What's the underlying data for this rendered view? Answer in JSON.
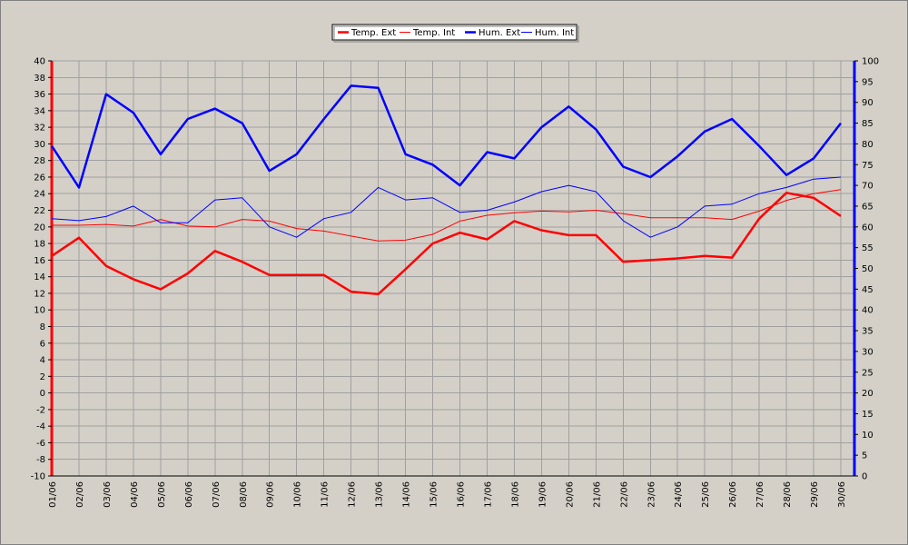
{
  "chart_data": {
    "type": "line",
    "categories": [
      "01/06",
      "02/06",
      "03/06",
      "04/06",
      "05/06",
      "06/06",
      "07/06",
      "08/06",
      "09/06",
      "10/06",
      "11/06",
      "12/06",
      "13/06",
      "14/06",
      "15/06",
      "16/06",
      "17/06",
      "18/06",
      "19/06",
      "20/06",
      "21/06",
      "22/06",
      "23/06",
      "24/06",
      "25/06",
      "26/06",
      "27/06",
      "28/06",
      "29/06",
      "30/06"
    ],
    "x_positions": [
      1,
      2,
      3,
      4,
      5,
      6,
      7,
      8,
      9,
      10,
      11,
      12,
      13,
      14,
      15,
      16,
      17,
      18,
      19,
      20,
      21,
      22,
      23,
      24,
      25,
      26,
      27,
      28,
      29,
      30
    ],
    "x_start_value": 1,
    "x_end_value": 30.5,
    "ylim_left": [
      -10,
      40
    ],
    "ylim_right": [
      0,
      100
    ],
    "yticks_left": [
      "40",
      "38",
      "36",
      "34",
      "32",
      "30",
      "28",
      "26",
      "24",
      "22",
      "20",
      "18",
      "16",
      "14",
      "12",
      "10",
      "8",
      "6",
      "4",
      "2",
      "0",
      "-2",
      "-4",
      "-6",
      "-8",
      "-10"
    ],
    "yticks_right": [
      "100",
      "95",
      "90",
      "85",
      "80",
      "75",
      "70",
      "65",
      "60",
      "55",
      "50",
      "45",
      "40",
      "35",
      "30",
      "25",
      "20",
      "15",
      "10",
      "5",
      "0"
    ],
    "grid": true,
    "legend_position": "top-center",
    "series": [
      {
        "name": "Temp. Ext",
        "color": "#ff0000",
        "width": "thick",
        "axis": "left",
        "values": [
          16.5,
          18.7,
          15.3,
          13.7,
          12.5,
          14.4,
          17.1,
          15.8,
          14.2,
          14.2,
          14.2,
          12.2,
          11.9,
          14.9,
          18.0,
          19.3,
          18.5,
          20.7,
          19.6,
          19.0,
          19.0,
          15.8,
          16.0,
          16.2,
          16.5,
          16.3,
          21.0,
          24.1,
          23.5,
          21.3
        ]
      },
      {
        "name": "Temp. Int",
        "color": "#ff0000",
        "width": "thin",
        "axis": "left",
        "values": [
          20.2,
          20.2,
          20.3,
          20.1,
          20.9,
          20.1,
          20.0,
          20.9,
          20.7,
          19.8,
          19.5,
          18.9,
          18.3,
          18.4,
          19.1,
          20.7,
          21.4,
          21.7,
          21.9,
          21.8,
          22.0,
          21.6,
          21.1,
          21.1,
          21.1,
          20.9,
          21.9,
          23.2,
          24.0,
          24.5
        ]
      },
      {
        "name": "Hum. Ext",
        "color": "#0000ff",
        "width": "thick",
        "axis": "right",
        "values": [
          79.5,
          69.5,
          92,
          87.5,
          77.5,
          86,
          88.5,
          85,
          73.5,
          77.5,
          86,
          94,
          93.5,
          77.5,
          75,
          70,
          78,
          76.5,
          84,
          89,
          83.5,
          74.5,
          72,
          77,
          83,
          86,
          79.5,
          72.5,
          76.5,
          85
        ]
      },
      {
        "name": "Hum. Int",
        "color": "#0000ff",
        "width": "thin",
        "axis": "right",
        "values": [
          62,
          61.5,
          62.5,
          65,
          61,
          61,
          66.5,
          67,
          60,
          57.5,
          62,
          63.5,
          69.5,
          66.5,
          67,
          63.5,
          64,
          66,
          68.5,
          70,
          68.5,
          61.5,
          57.5,
          60,
          65,
          65.5,
          68,
          69.5,
          71.5,
          72
        ]
      }
    ]
  }
}
